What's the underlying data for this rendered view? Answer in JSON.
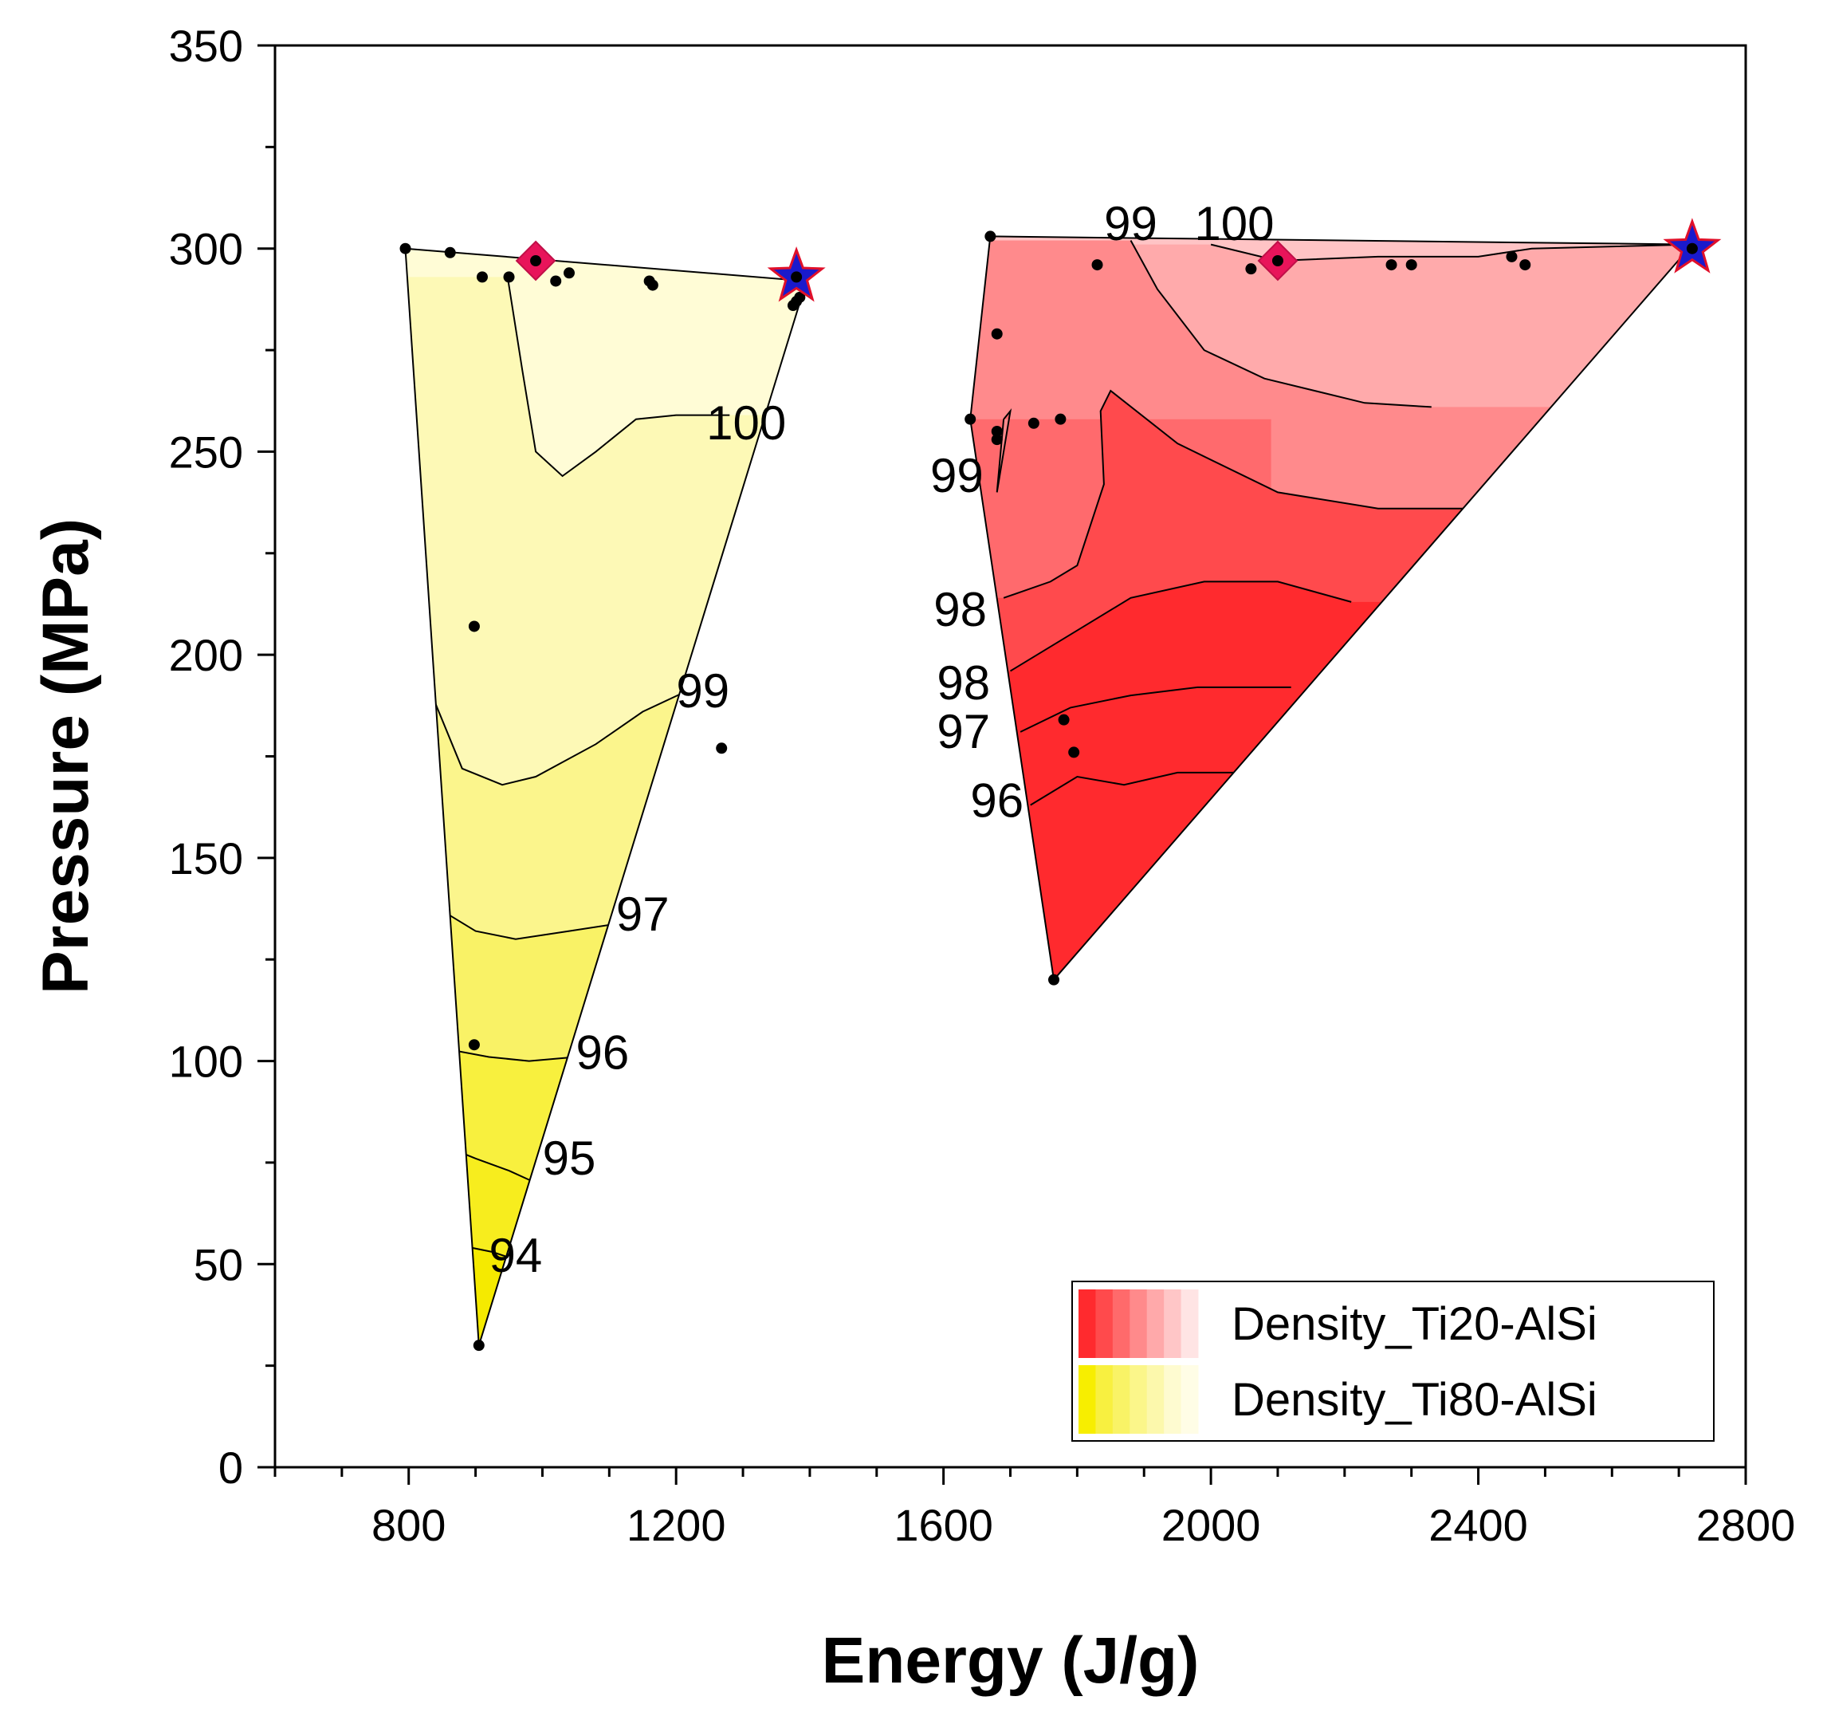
{
  "chart_data": {
    "type": "contour",
    "xlabel": "Energy (J/g)",
    "ylabel": "Pressure (MPa)",
    "xlim": [
      600,
      2800
    ],
    "ylim": [
      0,
      350
    ],
    "x_ticks": [
      800,
      1200,
      1600,
      2000,
      2400,
      2800
    ],
    "y_ticks": [
      0,
      50,
      100,
      150,
      200,
      250,
      300,
      350
    ],
    "legend_position": "bottom-right",
    "legend": [
      {
        "label": "Density_Ti20-AlSi",
        "colors": [
          "#ff2a2e",
          "#ff4a4c",
          "#ff6a6b",
          "#ff8a8b",
          "#ffa9aa",
          "#ffc6c7",
          "#ffe4e4"
        ]
      },
      {
        "label": "Density_Ti80-AlSi",
        "colors": [
          "#f7ee00",
          "#f8f040",
          "#f9f366",
          "#fbf68a",
          "#fcf8ac",
          "#fefbd0",
          "#fffde6"
        ]
      }
    ],
    "series": [
      {
        "name": "Density_Ti80-AlSi",
        "boundary": [
          [
            795,
            300
          ],
          [
            1395,
            292
          ],
          [
            905,
            30
          ]
        ],
        "fill_bands": [
          {
            "level": "<94",
            "color": "#f5ea00"
          },
          {
            "level": "94-95",
            "color": "#f7ed1e"
          },
          {
            "level": "95-96",
            "color": "#f8f03e"
          },
          {
            "level": "96-97",
            "color": "#f9f266"
          },
          {
            "level": "97-99",
            "color": "#fbf58c"
          },
          {
            "level": "99-100",
            "color": "#fdf9b6"
          },
          {
            "level": ">100",
            "color": "#fffcd6"
          }
        ],
        "contours": [
          {
            "level": "94",
            "points": [
              [
                865,
                55
              ],
              [
                925,
                53
              ],
              [
                980,
                50
              ]
            ]
          },
          {
            "level": "95",
            "points": [
              [
                855,
                79
              ],
              [
                900,
                76
              ],
              [
                950,
                73
              ],
              [
                990,
                70
              ]
            ]
          },
          {
            "level": "96",
            "points": [
              [
                855,
                103
              ],
              [
                920,
                101
              ],
              [
                980,
                100
              ],
              [
                1050,
                101
              ]
            ]
          },
          {
            "level": "97",
            "points": [
              [
                850,
                137
              ],
              [
                900,
                132
              ],
              [
                960,
                130
              ],
              [
                1040,
                132
              ],
              [
                1120,
                134
              ]
            ]
          },
          {
            "level": "99",
            "points": [
              [
                840,
                188
              ],
              [
                880,
                172
              ],
              [
                940,
                168
              ],
              [
                990,
                170
              ],
              [
                1080,
                178
              ],
              [
                1150,
                186
              ],
              [
                1215,
                191
              ]
            ]
          },
          {
            "level": "100",
            "points": [
              [
                948,
                293
              ],
              [
                970,
                270
              ],
              [
                990,
                250
              ],
              [
                1030,
                244
              ],
              [
                1080,
                250
              ],
              [
                1140,
                258
              ],
              [
                1200,
                259
              ],
              [
                1280,
                259
              ]
            ]
          }
        ],
        "contour_labels": [
          {
            "text": "94",
            "x": 960,
            "y": 52
          },
          {
            "text": "95",
            "x": 1040,
            "y": 76
          },
          {
            "text": "96",
            "x": 1090,
            "y": 102
          },
          {
            "text": "97",
            "x": 1150,
            "y": 136
          },
          {
            "text": "99",
            "x": 1240,
            "y": 191
          },
          {
            "text": "100",
            "x": 1305,
            "y": 257
          }
        ],
        "points": [
          [
            795,
            300
          ],
          [
            862,
            299
          ],
          [
            910,
            293
          ],
          [
            950,
            293
          ],
          [
            1020,
            292
          ],
          [
            1040,
            294
          ],
          [
            1160,
            292
          ],
          [
            1165,
            291
          ],
          [
            1268,
            177
          ],
          [
            898,
            207
          ],
          [
            898,
            104
          ],
          [
            905,
            30
          ],
          [
            1380,
            287
          ],
          [
            1385,
            288
          ],
          [
            1375,
            286
          ]
        ],
        "markers": [
          {
            "shape": "diamond",
            "x": 990,
            "y": 297,
            "color": "#e8145a"
          },
          {
            "shape": "star",
            "x": 1380,
            "y": 293,
            "color": "#1a1acc"
          }
        ]
      },
      {
        "name": "Density_Ti20-AlSi",
        "boundary": [
          [
            1670,
            303
          ],
          [
            2720,
            301
          ],
          [
            1765,
            120
          ],
          [
            1640,
            258
          ]
        ],
        "fill_bands": [
          {
            "level": "<96",
            "color": "#ff2a2e"
          },
          {
            "level": "96-97",
            "color": "#ff4a4d"
          },
          {
            "level": "97-98",
            "color": "#ff6a6d"
          },
          {
            "level": "98-99",
            "color": "#ff8a8c"
          },
          {
            "level": "99-100",
            "color": "#ffaaab"
          },
          {
            "level": ">100",
            "color": "#ffc4c5"
          }
        ],
        "contours": [
          {
            "level": "96",
            "points": [
              [
                1730,
                163
              ],
              [
                1800,
                170
              ],
              [
                1870,
                168
              ],
              [
                1950,
                171
              ],
              [
                2040,
                171
              ]
            ]
          },
          {
            "level": "97",
            "points": [
              [
                1715,
                181
              ],
              [
                1790,
                187
              ],
              [
                1880,
                190
              ],
              [
                1980,
                192
              ],
              [
                2120,
                192
              ]
            ]
          },
          {
            "level": "98",
            "points": [
              [
                1700,
                196
              ],
              [
                1790,
                205
              ],
              [
                1880,
                214
              ],
              [
                1990,
                218
              ],
              [
                2100,
                218
              ],
              [
                2210,
                213
              ]
            ]
          },
          {
            "level": "98",
            "points": [
              [
                1690,
                214
              ],
              [
                1760,
                218
              ],
              [
                1800,
                222
              ],
              [
                1840,
                242
              ],
              [
                1835,
                260
              ],
              [
                1850,
                265
              ],
              [
                1950,
                252
              ],
              [
                2100,
                240
              ],
              [
                2250,
                236
              ],
              [
                2390,
                236
              ]
            ]
          },
          {
            "level": "99",
            "points": [
              [
                1690,
                258
              ],
              [
                1680,
                240
              ],
              [
                1690,
                250
              ],
              [
                1700,
                260
              ],
              [
                1690,
                258
              ]
            ]
          },
          {
            "level": "99",
            "points": [
              [
                1880,
                302
              ],
              [
                1920,
                290
              ],
              [
                1990,
                275
              ],
              [
                2080,
                268
              ],
              [
                2230,
                262
              ],
              [
                2330,
                261
              ]
            ]
          },
          {
            "level": "100",
            "points": [
              [
                2000,
                301
              ],
              [
                2100,
                297
              ],
              [
                2250,
                298
              ],
              [
                2400,
                298
              ],
              [
                2480,
                300
              ],
              [
                2720,
                301
              ]
            ]
          }
        ],
        "contour_labels": [
          {
            "text": "99",
            "x": 1880,
            "y": 306
          },
          {
            "text": "100",
            "x": 2035,
            "y": 306
          },
          {
            "text": "99",
            "x": 1620,
            "y": 244
          },
          {
            "text": "98",
            "x": 1625,
            "y": 211
          },
          {
            "text": "98",
            "x": 1630,
            "y": 193
          },
          {
            "text": "97",
            "x": 1630,
            "y": 181
          },
          {
            "text": "96",
            "x": 1680,
            "y": 164
          }
        ],
        "points": [
          [
            1670,
            303
          ],
          [
            1680,
            279
          ],
          [
            1640,
            258
          ],
          [
            1680,
            255
          ],
          [
            1680,
            253
          ],
          [
            1735,
            257
          ],
          [
            1775,
            258
          ],
          [
            1830,
            296
          ],
          [
            2060,
            295
          ],
          [
            2100,
            299
          ],
          [
            2270,
            296
          ],
          [
            2300,
            296
          ],
          [
            2450,
            298
          ],
          [
            2470,
            296
          ],
          [
            1780,
            184
          ],
          [
            1795,
            176
          ],
          [
            1765,
            120
          ],
          [
            2720,
            300
          ]
        ],
        "markers": [
          {
            "shape": "diamond",
            "x": 2100,
            "y": 297,
            "color": "#e8145a"
          },
          {
            "shape": "star",
            "x": 2720,
            "y": 300,
            "color": "#1a1acc"
          }
        ]
      }
    ]
  }
}
